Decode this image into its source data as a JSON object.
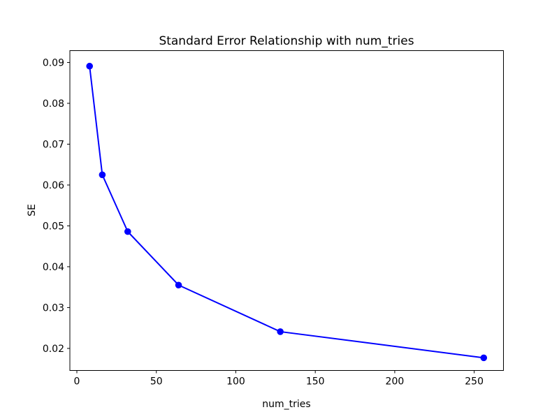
{
  "figure": {
    "background": "#ffffff",
    "text_color": "#000000",
    "spine_color": "#000000"
  },
  "chart_data": {
    "type": "line",
    "title": "Standard Error Relationship with num_tries",
    "xlabel": "num_tries",
    "ylabel": "SE",
    "x": [
      8,
      16,
      32,
      64,
      128,
      256
    ],
    "y": [
      0.0891,
      0.0625,
      0.0486,
      0.0355,
      0.0241,
      0.0177
    ],
    "line_color": "#0000ff",
    "marker": "circle",
    "marker_color": "#0000ff",
    "xlim": [
      -4.4,
      268.4
    ],
    "ylim": [
      0.0146,
      0.0929
    ],
    "xticks": [
      0,
      50,
      100,
      150,
      200,
      250
    ],
    "yticks": [
      0.02,
      0.03,
      0.04,
      0.05,
      0.06,
      0.07,
      0.08,
      0.09
    ],
    "grid": false,
    "legend_position": "none"
  }
}
